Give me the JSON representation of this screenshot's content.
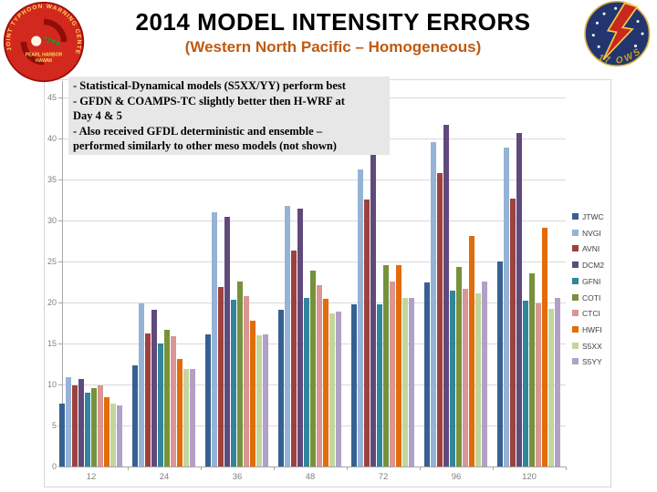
{
  "header": {
    "title": "2014 MODEL INTENSITY ERRORS",
    "subtitle": "(Western North Pacific – Homogeneous)"
  },
  "notes": {
    "lines": [
      "- Statistical-Dynamical models (S5XX/YY) perform best",
      "- GFDN & COAMPS-TC slightly better then H-WRF at",
      "Day 4 & 5",
      "- Also received GFDL deterministic and ensemble –",
      "performed similarly to other meso models (not shown)"
    ]
  },
  "badges": {
    "left_ring_text": "JOINT TYPHOON WARNING CENTER",
    "left_center_line1": "PEARL HARBOR",
    "left_center_line2": "HAWAII",
    "right_text": "17 OWS"
  },
  "chart_data": {
    "type": "bar",
    "title": "",
    "xlabel": "",
    "ylabel": "",
    "categories": [
      12,
      24,
      36,
      48,
      72,
      96,
      120
    ],
    "ylim": [
      0,
      45
    ],
    "ytick_step": 5,
    "grid": true,
    "legend_position": "right",
    "series": [
      {
        "name": "JTWC",
        "color": "#376092",
        "values": [
          7.7,
          12.3,
          16.1,
          19.1,
          19.8,
          22.4,
          25.0
        ]
      },
      {
        "name": "NVGI",
        "color": "#95B3D7",
        "values": [
          10.9,
          19.9,
          31.0,
          31.8,
          36.2,
          39.6,
          38.9
        ]
      },
      {
        "name": "AVNI",
        "color": "#9E413E",
        "values": [
          9.9,
          16.2,
          21.9,
          26.3,
          32.5,
          35.8,
          32.7
        ]
      },
      {
        "name": "DCM2",
        "color": "#604A7B",
        "values": [
          10.7,
          19.1,
          30.4,
          31.4,
          38.0,
          41.7,
          40.7
        ]
      },
      {
        "name": "GFNI",
        "color": "#31859C",
        "values": [
          9.0,
          15.0,
          20.3,
          20.6,
          19.8,
          21.4,
          20.2
        ]
      },
      {
        "name": "COTI",
        "color": "#76923C",
        "values": [
          9.5,
          16.7,
          22.6,
          23.9,
          24.5,
          24.3,
          23.5
        ]
      },
      {
        "name": "CTCI",
        "color": "#D99694",
        "values": [
          9.9,
          15.9,
          20.8,
          22.1,
          22.6,
          21.7,
          19.9
        ]
      },
      {
        "name": "HWFI",
        "color": "#E36C0A",
        "values": [
          8.4,
          13.1,
          17.8,
          20.4,
          24.5,
          28.1,
          29.1
        ]
      },
      {
        "name": "S5XX",
        "color": "#C2D69B",
        "values": [
          7.7,
          11.9,
          16.0,
          18.7,
          20.6,
          21.1,
          19.2
        ]
      },
      {
        "name": "S5YY",
        "color": "#B2A1C7",
        "values": [
          7.4,
          11.9,
          16.1,
          18.9,
          20.5,
          22.6,
          20.5
        ]
      }
    ]
  }
}
